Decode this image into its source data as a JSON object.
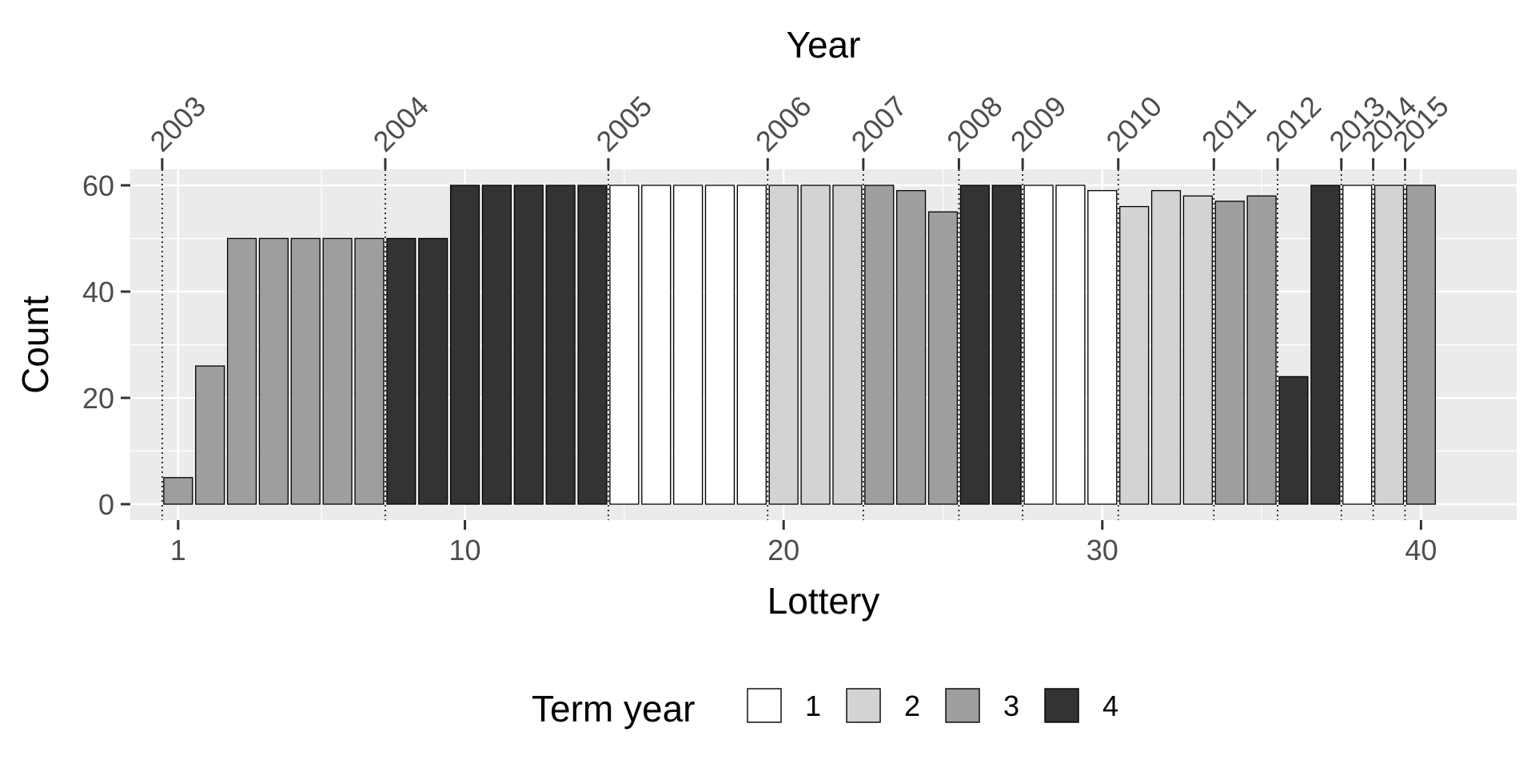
{
  "chart_data": {
    "type": "bar",
    "xlabel": "Lottery",
    "ylabel": "Count",
    "top_axis_title": "Year",
    "xlim": [
      -0.5,
      43.0
    ],
    "ylim": [
      -3,
      63
    ],
    "x_ticks": [
      1,
      10,
      20,
      30,
      40
    ],
    "y_ticks": [
      0,
      20,
      40,
      60
    ],
    "grid": true,
    "legend_position": "bottom",
    "legend_title": "Term year",
    "series": [
      {
        "name": "1",
        "color": "#ffffff"
      },
      {
        "name": "2",
        "color": "#d3d3d3"
      },
      {
        "name": "3",
        "color": "#9e9e9e"
      },
      {
        "name": "4",
        "color": "#333333"
      }
    ],
    "bars": [
      {
        "x": 1,
        "value": 5,
        "term_year": "3"
      },
      {
        "x": 2,
        "value": 26,
        "term_year": "3"
      },
      {
        "x": 3,
        "value": 50,
        "term_year": "3"
      },
      {
        "x": 4,
        "value": 50,
        "term_year": "3"
      },
      {
        "x": 5,
        "value": 50,
        "term_year": "3"
      },
      {
        "x": 6,
        "value": 50,
        "term_year": "3"
      },
      {
        "x": 7,
        "value": 50,
        "term_year": "3"
      },
      {
        "x": 8,
        "value": 50,
        "term_year": "4"
      },
      {
        "x": 9,
        "value": 50,
        "term_year": "4"
      },
      {
        "x": 10,
        "value": 60,
        "term_year": "4"
      },
      {
        "x": 11,
        "value": 60,
        "term_year": "4"
      },
      {
        "x": 12,
        "value": 60,
        "term_year": "4"
      },
      {
        "x": 13,
        "value": 60,
        "term_year": "4"
      },
      {
        "x": 14,
        "value": 60,
        "term_year": "4"
      },
      {
        "x": 15,
        "value": 60,
        "term_year": "1"
      },
      {
        "x": 16,
        "value": 60,
        "term_year": "1"
      },
      {
        "x": 17,
        "value": 60,
        "term_year": "1"
      },
      {
        "x": 18,
        "value": 60,
        "term_year": "1"
      },
      {
        "x": 19,
        "value": 60,
        "term_year": "1"
      },
      {
        "x": 20,
        "value": 60,
        "term_year": "2"
      },
      {
        "x": 21,
        "value": 60,
        "term_year": "2"
      },
      {
        "x": 22,
        "value": 60,
        "term_year": "2"
      },
      {
        "x": 23,
        "value": 60,
        "term_year": "3"
      },
      {
        "x": 24,
        "value": 59,
        "term_year": "3"
      },
      {
        "x": 25,
        "value": 55,
        "term_year": "3"
      },
      {
        "x": 26,
        "value": 60,
        "term_year": "4"
      },
      {
        "x": 27,
        "value": 60,
        "term_year": "4"
      },
      {
        "x": 28,
        "value": 60,
        "term_year": "1"
      },
      {
        "x": 29,
        "value": 60,
        "term_year": "1"
      },
      {
        "x": 30,
        "value": 59,
        "term_year": "1"
      },
      {
        "x": 31,
        "value": 56,
        "term_year": "2"
      },
      {
        "x": 32,
        "value": 59,
        "term_year": "2"
      },
      {
        "x": 33,
        "value": 58,
        "term_year": "2"
      },
      {
        "x": 34,
        "value": 57,
        "term_year": "3"
      },
      {
        "x": 35,
        "value": 58,
        "term_year": "3"
      },
      {
        "x": 36,
        "value": 24,
        "term_year": "4"
      },
      {
        "x": 37,
        "value": 60,
        "term_year": "4"
      },
      {
        "x": 38,
        "value": 60,
        "term_year": "1"
      },
      {
        "x": 39,
        "value": 60,
        "term_year": "2"
      },
      {
        "x": 40,
        "value": 60,
        "term_year": "3"
      }
    ],
    "year_markers": [
      {
        "label": "2003",
        "x": 0.5
      },
      {
        "label": "2004",
        "x": 7.5
      },
      {
        "label": "2005",
        "x": 14.5
      },
      {
        "label": "2006",
        "x": 19.5
      },
      {
        "label": "2007",
        "x": 22.5
      },
      {
        "label": "2008",
        "x": 25.5
      },
      {
        "label": "2009",
        "x": 27.5
      },
      {
        "label": "2010",
        "x": 30.5
      },
      {
        "label": "2011",
        "x": 33.5
      },
      {
        "label": "2012",
        "x": 35.5
      },
      {
        "label": "2013",
        "x": 37.5
      },
      {
        "label": "2014",
        "x": 38.5
      },
      {
        "label": "2015",
        "x": 39.5
      }
    ]
  }
}
